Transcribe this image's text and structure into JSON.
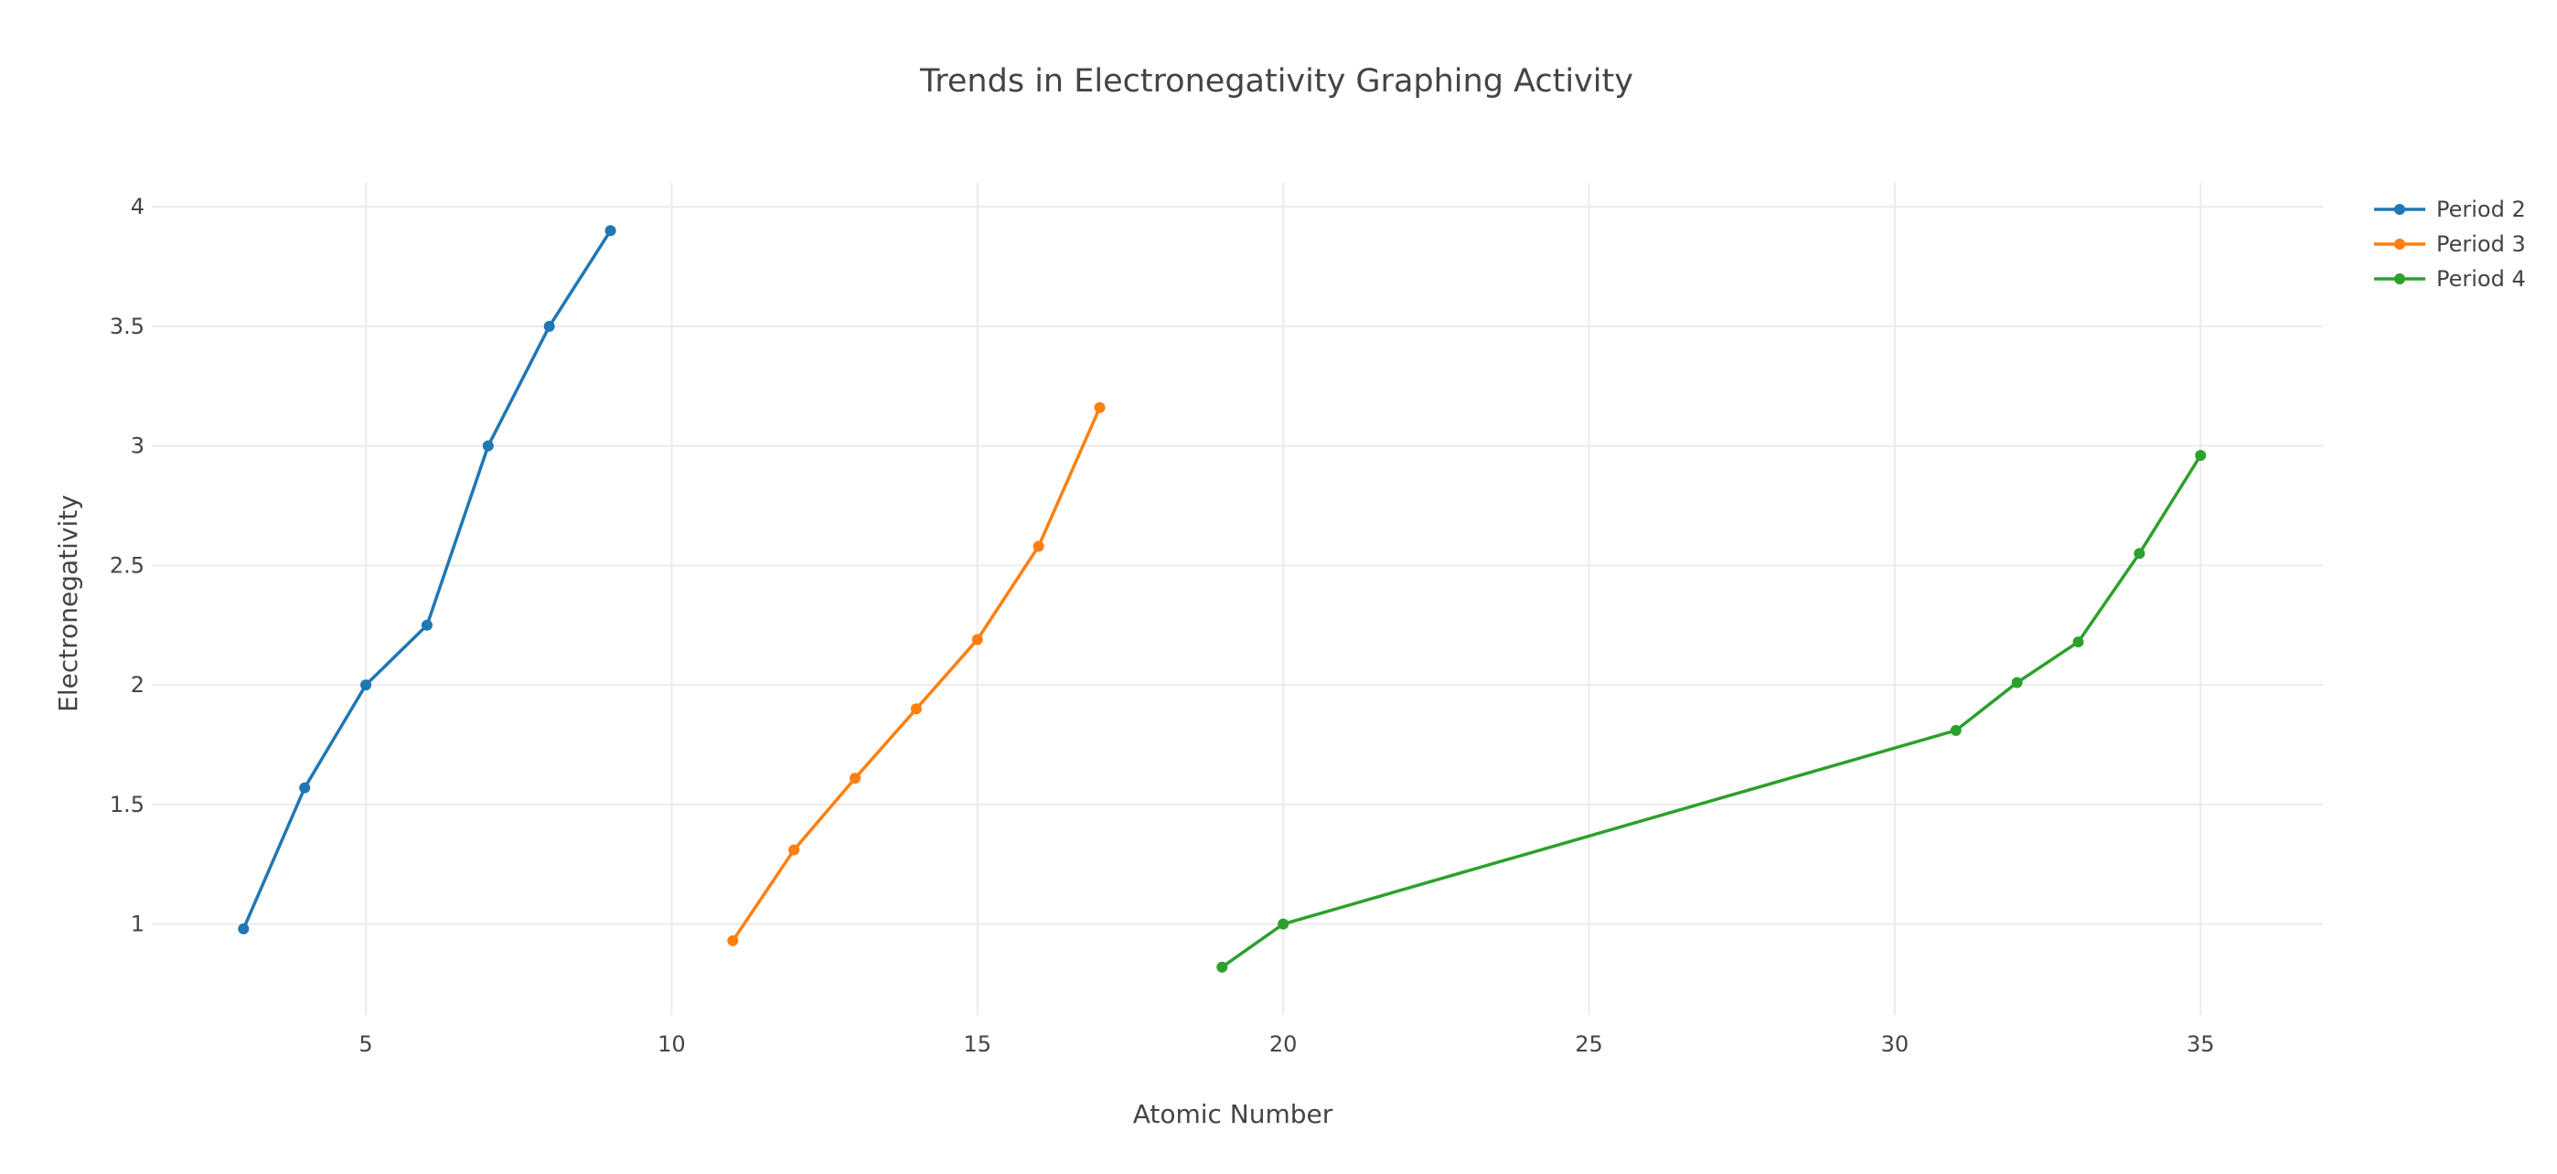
{
  "chart_data": {
    "type": "line",
    "title": "Trends in Electronegativity Graphing Activity",
    "xlabel": "Atomic Number",
    "ylabel": "Electronegativity",
    "xlim": [
      1.5,
      37
    ],
    "ylim": [
      0.62,
      4.1
    ],
    "xticks": [
      5,
      10,
      15,
      20,
      25,
      30,
      35
    ],
    "yticks": [
      1,
      1.5,
      2,
      2.5,
      3,
      3.5,
      4
    ],
    "grid": true,
    "legend_position": "top-right",
    "series": [
      {
        "name": "Period 2",
        "color": "#1f77b4",
        "x": [
          3,
          4,
          5,
          6,
          7,
          8,
          9
        ],
        "y": [
          0.98,
          1.57,
          2.0,
          2.25,
          3.0,
          3.5,
          3.9
        ]
      },
      {
        "name": "Period 3",
        "color": "#ff7f0e",
        "x": [
          11,
          12,
          13,
          14,
          15,
          16,
          17
        ],
        "y": [
          0.93,
          1.31,
          1.61,
          1.9,
          2.19,
          2.58,
          3.16
        ]
      },
      {
        "name": "Period 4",
        "color": "#2ca02c",
        "x": [
          19,
          20,
          31,
          32,
          33,
          34,
          35
        ],
        "y": [
          0.82,
          1.0,
          1.81,
          2.01,
          2.18,
          2.55,
          2.96
        ]
      }
    ]
  }
}
